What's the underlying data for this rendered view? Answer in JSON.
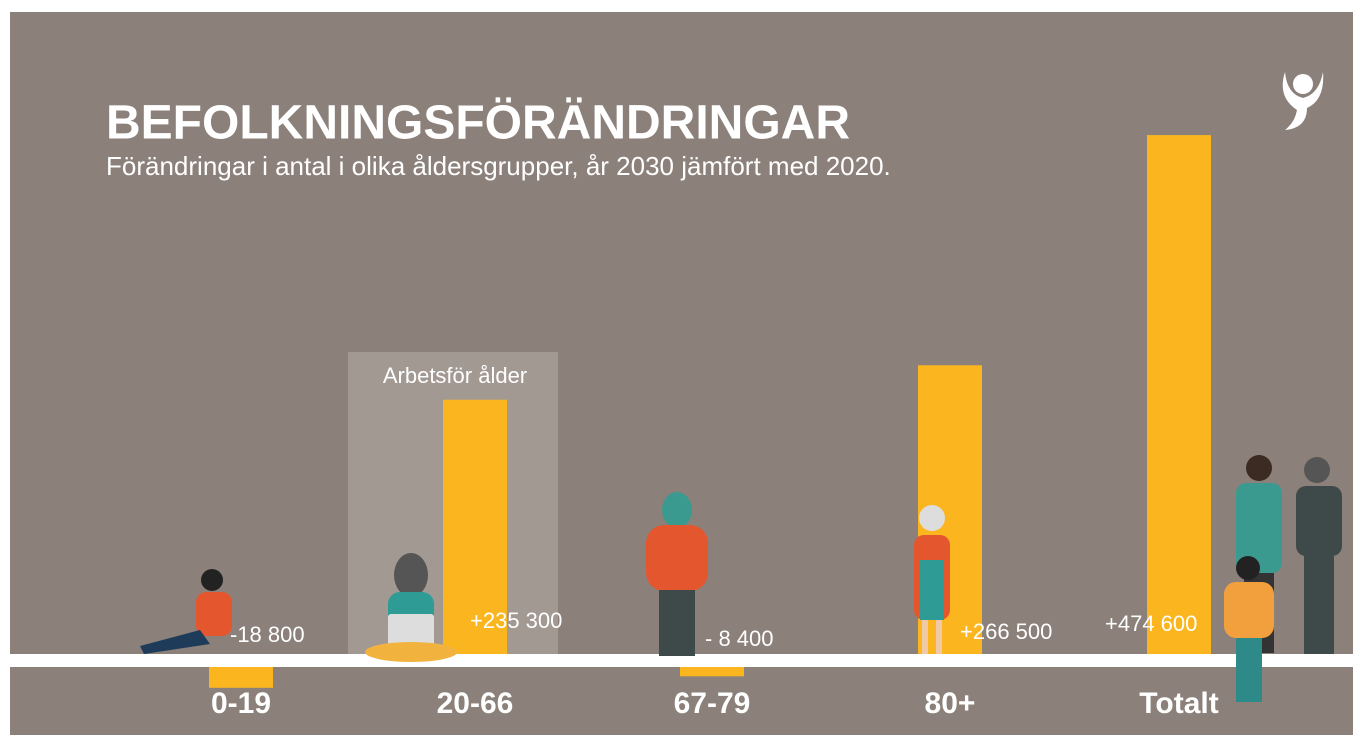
{
  "chart_data": {
    "type": "bar",
    "title": "BEFOLKNINGSFÖRÄNDRINGAR",
    "subtitle": "Förändringar i antal i olika åldersgrupper, år 2030 jämfört med 2020.",
    "annotation": "Arbetsför ålder",
    "categories": [
      "0-19",
      "20-66",
      "67-79",
      "80+",
      "Totalt"
    ],
    "values": [
      -18800,
      235300,
      -8400,
      266500,
      474600
    ],
    "value_labels": [
      "-18 800",
      "+235 300",
      "- 8 400",
      "+266 500",
      "+474 600"
    ],
    "color": "#fbb61f"
  }
}
